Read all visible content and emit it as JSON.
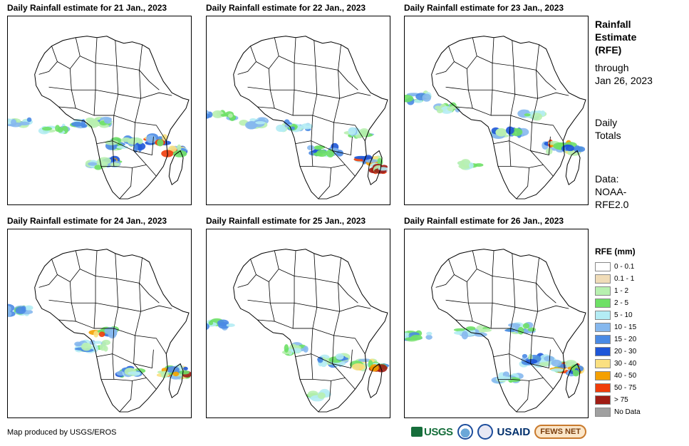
{
  "panels": [
    {
      "title": "Daily Rainfall estimate for 21 Jan., 2023"
    },
    {
      "title": "Daily Rainfall estimate for 22 Jan., 2023"
    },
    {
      "title": "Daily Rainfall estimate for 23 Jan., 2023"
    },
    {
      "title": "Daily Rainfall estimate for 24 Jan., 2023"
    },
    {
      "title": "Daily Rainfall estimate for 25 Jan., 2023"
    },
    {
      "title": "Daily Rainfall estimate for 26 Jan., 2023"
    }
  ],
  "side": {
    "title_lines": [
      "Rainfall",
      "Estimate",
      "(RFE)"
    ],
    "through_lines": [
      "through",
      "Jan 26, 2023"
    ],
    "totals_lines": [
      "Daily",
      "Totals"
    ],
    "data_lines": [
      "Data:",
      "NOAA-",
      "RFE2.0"
    ]
  },
  "legend": {
    "title": "RFE (mm)",
    "items": [
      {
        "label": "0 - 0.1",
        "color": "#ffffff"
      },
      {
        "label": "0.1 - 1",
        "color": "#f0dcb8"
      },
      {
        "label": "1 - 2",
        "color": "#b8f0b0"
      },
      {
        "label": "2 - 5",
        "color": "#6ee066"
      },
      {
        "label": "5 - 10",
        "color": "#b4ecf4"
      },
      {
        "label": "10 - 15",
        "color": "#86b8ee"
      },
      {
        "label": "15 - 20",
        "color": "#4a8ae4"
      },
      {
        "label": "20 - 30",
        "color": "#1e56d8"
      },
      {
        "label": "30 - 40",
        "color": "#fae080"
      },
      {
        "label": "40 - 50",
        "color": "#f4a000"
      },
      {
        "label": "50 - 75",
        "color": "#f03c0a"
      },
      {
        "label": "> 75",
        "color": "#a01c14"
      },
      {
        "label": "No Data",
        "color": "#a0a0a0"
      }
    ]
  },
  "credit": "Map produced by USGS/EROS",
  "logos": {
    "usgs": "USGS",
    "usaid": "USAID",
    "fews": "FEWS NET"
  }
}
